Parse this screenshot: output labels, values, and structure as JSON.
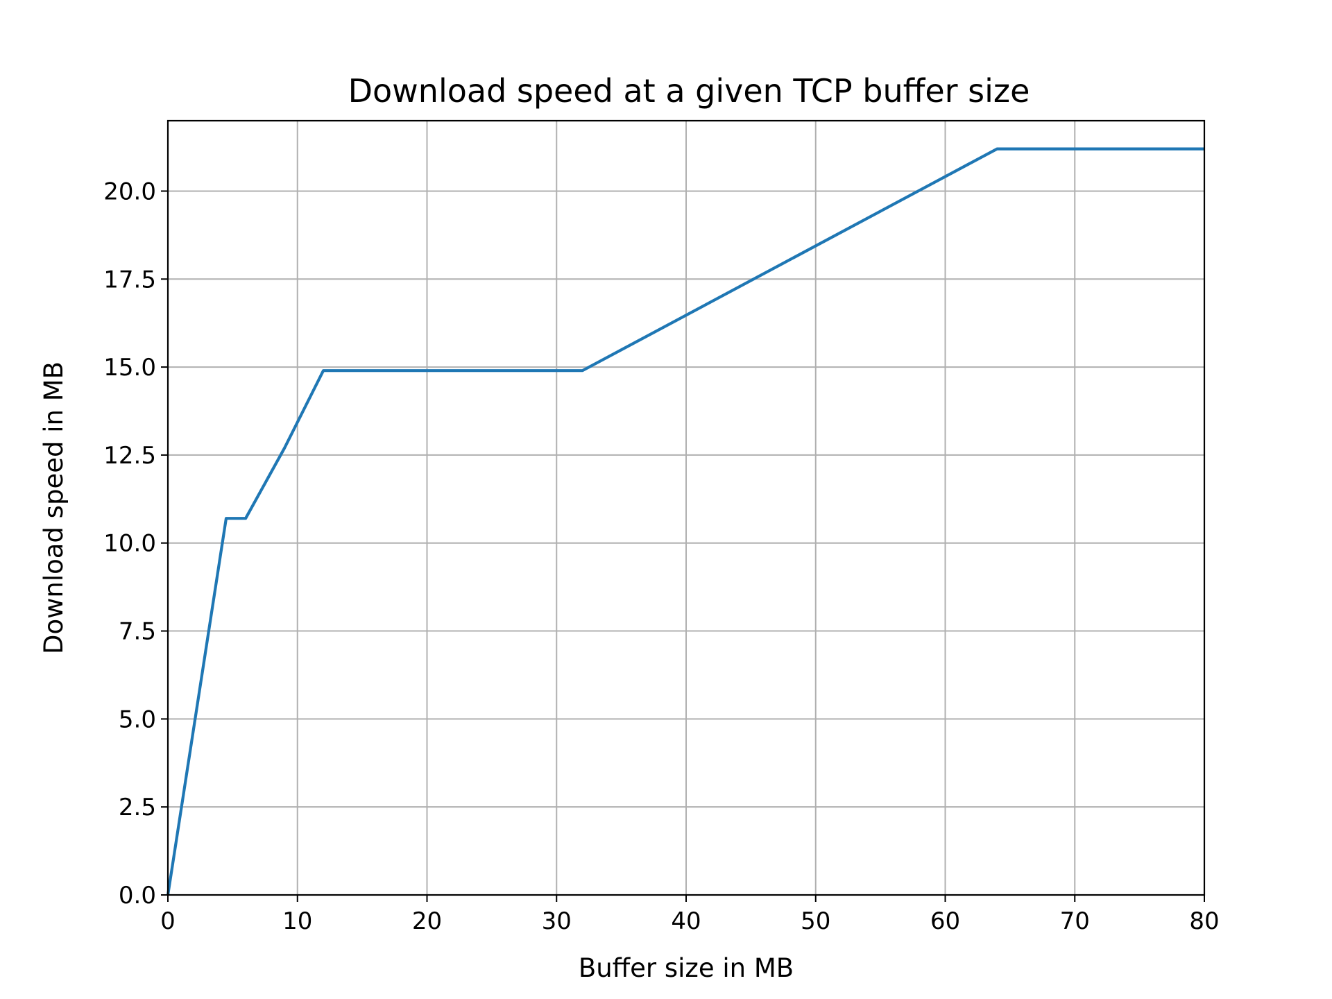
{
  "chart_data": {
    "type": "line",
    "title": "Download speed at a given TCP buffer size",
    "xlabel": "Buffer size in MB",
    "ylabel": "Download speed in MB",
    "xlim": [
      0,
      80
    ],
    "ylim": [
      0,
      22
    ],
    "grid": true,
    "x_ticks": [
      0,
      10,
      20,
      30,
      40,
      50,
      60,
      70,
      80
    ],
    "x_tick_labels": [
      "0",
      "10",
      "20",
      "30",
      "40",
      "50",
      "60",
      "70",
      "80"
    ],
    "y_ticks": [
      0,
      2.5,
      5,
      7.5,
      10,
      12.5,
      15,
      17.5,
      20
    ],
    "y_tick_labels": [
      "0.0",
      "2.5",
      "5.0",
      "7.5",
      "10.0",
      "12.5",
      "15.0",
      "17.5",
      "20.0"
    ],
    "series": [
      {
        "color": "#1f77b4",
        "x": [
          0,
          4.5,
          6,
          9,
          12,
          32,
          64,
          80
        ],
        "y": [
          0,
          10.7,
          10.7,
          12.7,
          14.9,
          14.9,
          21.2,
          21.2
        ]
      }
    ]
  }
}
